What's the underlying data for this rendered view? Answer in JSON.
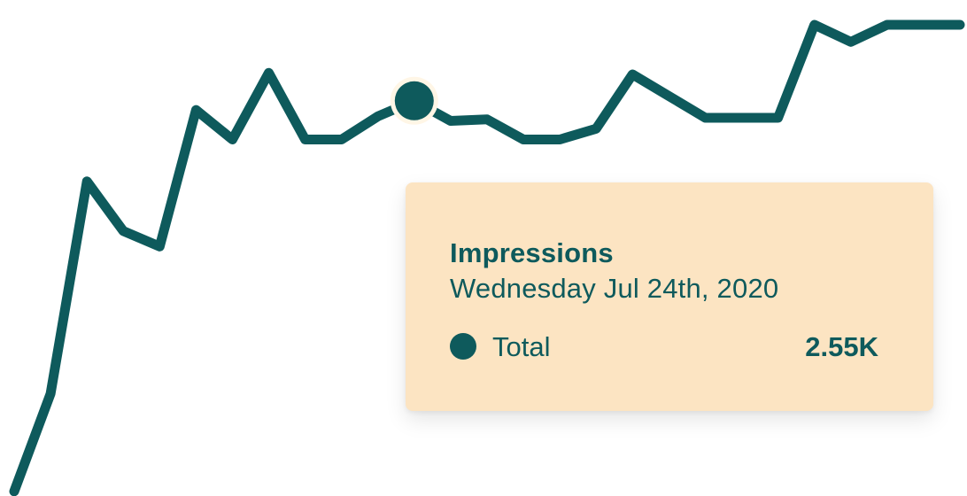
{
  "colors": {
    "line": "#0e5a5c",
    "tooltip_bg": "#fce4c2",
    "marker_ring": "#fff6e6"
  },
  "tooltip": {
    "title": "Impressions",
    "date": "Wednesday Jul 24th, 2020",
    "series_label": "Total",
    "value": "2.55K"
  },
  "chart_data": {
    "type": "line",
    "title": "",
    "xlabel": "",
    "ylabel": "",
    "grid": false,
    "legend": "none",
    "ylim": [
      0,
      3.2
    ],
    "x": [
      0,
      1,
      2,
      3,
      4,
      5,
      6,
      7,
      8,
      9,
      10,
      11,
      12,
      13,
      14,
      15,
      16,
      17,
      18,
      19,
      20,
      21,
      22,
      23,
      24,
      25,
      26
    ],
    "series": [
      {
        "values": [
          0.03,
          0.66,
          2.03,
          1.71,
          1.61,
          2.49,
          2.3,
          2.73,
          2.3,
          2.3,
          2.45,
          2.55,
          2.42,
          2.43,
          2.3,
          2.3,
          2.37,
          2.72,
          2.58,
          2.44,
          2.44,
          2.44,
          3.04,
          2.93,
          3.04,
          3.04,
          3.04
        ],
        "highlight_index": 11
      }
    ]
  }
}
